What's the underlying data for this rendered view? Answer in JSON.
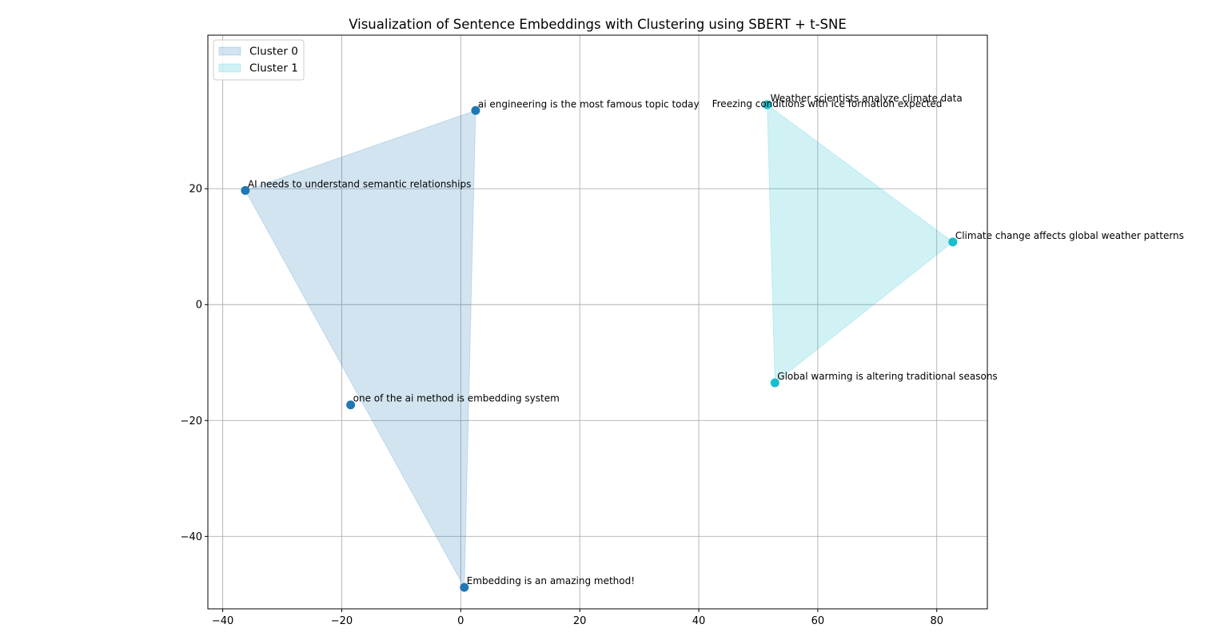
{
  "chart_data": {
    "type": "scatter",
    "title": "Visualization of Sentence Embeddings with Clustering using SBERT + t-SNE",
    "xlabel": "",
    "ylabel": "",
    "xlim": [
      -42.5,
      88.5
    ],
    "ylim": [
      -52.5,
      46.5
    ],
    "xticks": [
      -40,
      -20,
      0,
      20,
      40,
      60,
      80
    ],
    "yticks": [
      -40,
      -20,
      0,
      20
    ],
    "xtick_labels": [
      "−40",
      "−20",
      "0",
      "20",
      "40",
      "60",
      "80"
    ],
    "ytick_labels": [
      "−40",
      "−20",
      "0",
      "20"
    ],
    "grid": true,
    "legend_position": "upper-left",
    "colors": {
      "cluster_0": "#1f77b4",
      "cluster_1": "#17becf",
      "grid": "#b0b0b0"
    },
    "series": [
      {
        "name": "Cluster 0",
        "color": "#1f77b4",
        "points": [
          {
            "x": 2.5,
            "y": 33.5,
            "label": "ai engineering is the most famous topic today"
          },
          {
            "x": -36.2,
            "y": 19.7,
            "label": "AI needs to understand semantic relationships"
          },
          {
            "x": -18.5,
            "y": -17.3,
            "label": "one of the ai method is embedding system"
          },
          {
            "x": 0.6,
            "y": -48.8,
            "label": "Embedding is an amazing method!"
          }
        ],
        "hull": [
          [
            2.5,
            33.5
          ],
          [
            -36.2,
            19.7
          ],
          [
            0.6,
            -48.8
          ]
        ]
      },
      {
        "name": "Cluster 1",
        "color": "#17becf",
        "points": [
          {
            "x": 51.5,
            "y": 34.5,
            "label": "Weather scientists analyze climate data"
          },
          {
            "x": 51.5,
            "y": 34.5,
            "label": "Freezing conditions with ice formation expected"
          },
          {
            "x": 82.7,
            "y": 10.8,
            "label": "Climate change affects global weather patterns"
          },
          {
            "x": 52.8,
            "y": -13.5,
            "label": "Global warming is altering traditional seasons"
          }
        ],
        "hull": [
          [
            51.5,
            34.5
          ],
          [
            82.7,
            10.8
          ],
          [
            52.8,
            -13.5
          ]
        ]
      }
    ]
  }
}
